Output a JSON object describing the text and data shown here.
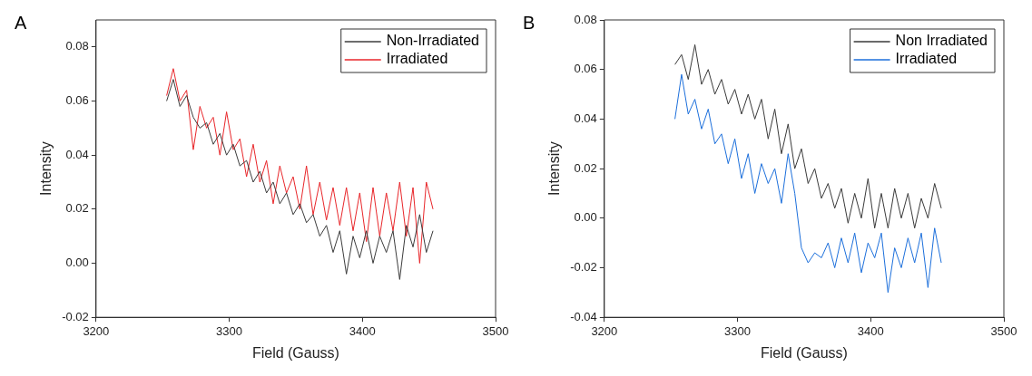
{
  "chart_data": [
    {
      "type": "line",
      "title": "A",
      "xlabel": "Field (Gauss)",
      "ylabel": "Intensity",
      "xlim": [
        3200,
        3500
      ],
      "xticks": [
        3200,
        3300,
        3400,
        3500
      ],
      "ylim": [
        -0.02,
        0.09
      ],
      "yticks": [
        -0.02,
        {
          "value": 0,
          "label": "0.00"
        },
        0.02,
        0.04,
        0.06,
        0.08
      ],
      "grid": false,
      "legend": "top right",
      "marker": "none",
      "line_style": "solid",
      "x": [
        3253,
        3258,
        3263,
        3268,
        3273,
        3278,
        3283,
        3288,
        3293,
        3298,
        3303,
        3308,
        3313,
        3318,
        3323,
        3328,
        3333,
        3338,
        3343,
        3348,
        3353,
        3358,
        3363,
        3368,
        3373,
        3378,
        3383,
        3388,
        3393,
        3398,
        3403,
        3408,
        3413,
        3418,
        3423,
        3428,
        3433,
        3438,
        3443,
        3448,
        3453
      ],
      "series": [
        {
          "name": "Non-Irradiated",
          "color": "#3c3c3c",
          "values": [
            0.06,
            0.068,
            0.058,
            0.062,
            0.054,
            0.05,
            0.052,
            0.044,
            0.048,
            0.04,
            0.044,
            0.036,
            0.038,
            0.03,
            0.034,
            0.026,
            0.03,
            0.022,
            0.026,
            0.018,
            0.022,
            0.015,
            0.018,
            0.01,
            0.014,
            0.004,
            0.012,
            -0.004,
            0.01,
            0.002,
            0.012,
            0.0,
            0.01,
            0.004,
            0.012,
            -0.006,
            0.014,
            0.006,
            0.018,
            0.004,
            0.012
          ]
        },
        {
          "name": "Irradiated",
          "color": "#e8262a",
          "values": [
            0.062,
            0.072,
            0.06,
            0.064,
            0.042,
            0.058,
            0.05,
            0.054,
            0.04,
            0.056,
            0.042,
            0.046,
            0.032,
            0.044,
            0.03,
            0.038,
            0.022,
            0.036,
            0.026,
            0.032,
            0.02,
            0.036,
            0.018,
            0.03,
            0.016,
            0.028,
            0.014,
            0.028,
            0.012,
            0.026,
            0.008,
            0.028,
            0.01,
            0.026,
            0.012,
            0.03,
            0.01,
            0.028,
            0.0,
            0.03,
            0.02
          ]
        }
      ]
    },
    {
      "type": "line",
      "title": "B",
      "xlabel": "Field (Gauss)",
      "ylabel": "Intensity",
      "xlim": [
        3200,
        3500
      ],
      "xticks": [
        3200,
        3300,
        3400,
        3500
      ],
      "ylim": [
        -0.04,
        0.08
      ],
      "yticks": [
        -0.04,
        -0.02,
        {
          "value": 0,
          "label": "0.00"
        },
        0.02,
        0.04,
        0.06,
        0.08
      ],
      "grid": false,
      "legend": "top right",
      "marker": "none",
      "line_style": "solid",
      "x": [
        3253,
        3258,
        3263,
        3268,
        3273,
        3278,
        3283,
        3288,
        3293,
        3298,
        3303,
        3308,
        3313,
        3318,
        3323,
        3328,
        3333,
        3338,
        3343,
        3348,
        3353,
        3358,
        3363,
        3368,
        3373,
        3378,
        3383,
        3388,
        3393,
        3398,
        3403,
        3408,
        3413,
        3418,
        3423,
        3428,
        3433,
        3438,
        3443,
        3448,
        3453
      ],
      "series": [
        {
          "name": "Non Irradiated",
          "color": "#3a3a3a",
          "values": [
            0.062,
            0.066,
            0.056,
            0.07,
            0.054,
            0.06,
            0.05,
            0.056,
            0.046,
            0.052,
            0.042,
            0.05,
            0.04,
            0.048,
            0.032,
            0.044,
            0.026,
            0.038,
            0.02,
            0.028,
            0.014,
            0.02,
            0.008,
            0.014,
            0.004,
            0.012,
            -0.002,
            0.01,
            0.0,
            0.016,
            -0.004,
            0.01,
            -0.004,
            0.012,
            0.0,
            0.01,
            -0.004,
            0.008,
            0.0,
            0.014,
            0.004
          ]
        },
        {
          "name": "Irradiated",
          "color": "#1c6fdb",
          "values": [
            0.04,
            0.058,
            0.042,
            0.048,
            0.036,
            0.044,
            0.03,
            0.034,
            0.022,
            0.032,
            0.016,
            0.026,
            0.01,
            0.022,
            0.014,
            0.02,
            0.006,
            0.026,
            0.01,
            -0.012,
            -0.018,
            -0.014,
            -0.016,
            -0.01,
            -0.02,
            -0.008,
            -0.018,
            -0.006,
            -0.022,
            -0.01,
            -0.016,
            -0.006,
            -0.03,
            -0.012,
            -0.02,
            -0.008,
            -0.018,
            -0.006,
            -0.028,
            -0.004,
            -0.018
          ]
        }
      ]
    }
  ]
}
